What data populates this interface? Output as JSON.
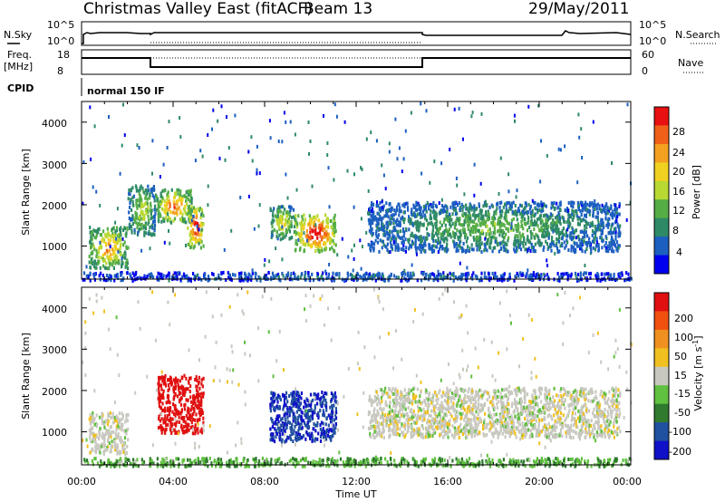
{
  "header": {
    "title": "Christmas Valley East (fitACF)",
    "beam": "Beam 13",
    "date": "29/May/2011"
  },
  "top_panels": {
    "nsky_label": "N.Sky",
    "nsky_ticks": [
      "10^5",
      "10^0"
    ],
    "nsearch_label": "N.Search",
    "nsearch_ticks": [
      "10^5",
      "10^0"
    ],
    "freq_label": "Freq.",
    "freq_unit": "[MHz]",
    "freq_ticks": [
      "18",
      "8"
    ],
    "nave_label": "Nave",
    "nave_ticks": [
      "60",
      "0"
    ],
    "cpid_label": "CPID",
    "cpid_value": "normal 150 IF"
  },
  "axes": {
    "ylabel": "Slant Range [km]",
    "yticks": [
      "4000",
      "3000",
      "2000",
      "1000"
    ],
    "xlabel": "Time UT",
    "xticks": [
      "00:00",
      "04:00",
      "08:00",
      "12:00",
      "16:00",
      "20:00",
      "00:00"
    ]
  },
  "colorbars": {
    "power": {
      "label": "Power [dB]",
      "ticks": [
        "28",
        "24",
        "20",
        "16",
        "12",
        "8",
        "4"
      ],
      "colors": [
        "#0000ee",
        "#1c5fc0",
        "#2e8a66",
        "#55ad46",
        "#b8d832",
        "#f0d020",
        "#f4a020",
        "#f06018",
        "#e81010"
      ]
    },
    "velocity": {
      "label": "Velocity [m s",
      "label_sup": "-1",
      "label_end": "]",
      "ticks": [
        "200",
        "100",
        "50",
        "15",
        "-15",
        "-50",
        "-100",
        "-200"
      ],
      "colors": [
        "#1010c8",
        "#2050a0",
        "#2f7a2f",
        "#60c040",
        "#c8c8c0",
        "#f0c020",
        "#f09020",
        "#f05010",
        "#e01010"
      ]
    }
  },
  "chart_data": [
    {
      "type": "line",
      "name": "N.Sky",
      "x": [
        "00:00",
        "03:00",
        "04:00",
        "08:00",
        "12:00",
        "15:00",
        "16:00",
        "20:00",
        "24:00"
      ],
      "y_log10": [
        3.9,
        3.7,
        3.9,
        3.9,
        3.9,
        3.9,
        3.6,
        3.7,
        3.9
      ],
      "ylim": [
        0,
        5
      ]
    },
    {
      "type": "line",
      "name": "Freq. [MHz]",
      "x": [
        "00:00",
        "03:00",
        "03:00",
        "15:00",
        "15:00",
        "24:00"
      ],
      "y": [
        16.5,
        16.5,
        10.5,
        10.5,
        16.5,
        16.5
      ],
      "ylim": [
        8,
        18
      ]
    },
    {
      "type": "heatmap",
      "name": "Power [dB]",
      "xlim": [
        "00:00",
        "24:00"
      ],
      "ylim": [
        200,
        4500
      ],
      "zlim": [
        0,
        30
      ],
      "regions": [
        {
          "t": [
            0.3,
            2.0
          ],
          "range": [
            500,
            1500
          ],
          "power": 20
        },
        {
          "t": [
            2.0,
            3.2
          ],
          "range": [
            1300,
            2500
          ],
          "power": 14
        },
        {
          "t": [
            3.2,
            4.8
          ],
          "range": [
            1600,
            2400
          ],
          "power": 22
        },
        {
          "t": [
            4.6,
            5.3
          ],
          "range": [
            1000,
            2000
          ],
          "power": 27
        },
        {
          "t": [
            8.2,
            9.3
          ],
          "range": [
            1200,
            2000
          ],
          "power": 16
        },
        {
          "t": [
            9.3,
            11.1
          ],
          "range": [
            900,
            1800
          ],
          "power": 27
        },
        {
          "t": [
            12.5,
            23.5
          ],
          "range": [
            900,
            2100
          ],
          "power": 11
        },
        {
          "t": [
            0.0,
            24.0
          ],
          "range": [
            200,
            400
          ],
          "power": 6
        }
      ]
    },
    {
      "type": "heatmap",
      "name": "Velocity [m s-1]",
      "xlim": [
        "00:00",
        "24:00"
      ],
      "ylim": [
        200,
        4500
      ],
      "zlim": [
        -200,
        200
      ],
      "regions": [
        {
          "t": [
            0.3,
            2.0
          ],
          "range": [
            500,
            1500
          ],
          "velocity": 0
        },
        {
          "t": [
            3.3,
            5.3
          ],
          "range": [
            1000,
            2400
          ],
          "velocity": 220
        },
        {
          "t": [
            8.2,
            11.1
          ],
          "range": [
            800,
            2000
          ],
          "velocity": -150
        },
        {
          "t": [
            12.5,
            23.5
          ],
          "range": [
            900,
            2100
          ],
          "velocity": 0
        },
        {
          "t": [
            0.0,
            24.0
          ],
          "range": [
            200,
            400
          ],
          "velocity": -60
        }
      ]
    }
  ]
}
